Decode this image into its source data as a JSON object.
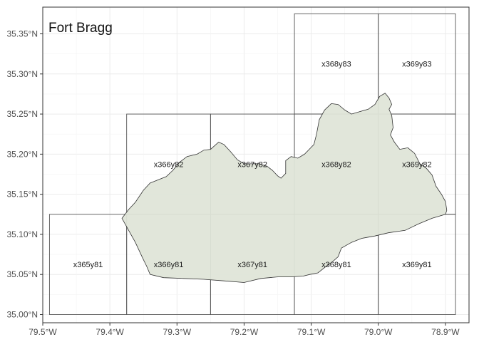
{
  "title": "Fort Bragg",
  "colors": {
    "panel_background": "#ffffff",
    "panel_border": "#333333",
    "gridline": "#ebebeb",
    "tile_border": "#555555",
    "boundary_fill": "#dfe5d8",
    "boundary_stroke": "#333333",
    "tick_text": "#4d4d4d"
  },
  "x_axis": {
    "range": [
      -79.5,
      -78.88
    ],
    "ticks": [
      {
        "value": -79.5,
        "label": "79.5°W"
      },
      {
        "value": -79.4,
        "label": "79.4°W"
      },
      {
        "value": -79.3,
        "label": "79.3°W"
      },
      {
        "value": -79.2,
        "label": "79.2°W"
      },
      {
        "value": -79.1,
        "label": "79.1°W"
      },
      {
        "value": -79.0,
        "label": "79.0°W"
      },
      {
        "value": -78.9,
        "label": "78.9°W"
      }
    ]
  },
  "y_axis": {
    "range": [
      35.0,
      35.375
    ],
    "ticks": [
      {
        "value": 35.0,
        "label": "35.00°N"
      },
      {
        "value": 35.05,
        "label": "35.05°N"
      },
      {
        "value": 35.1,
        "label": "35.10°N"
      },
      {
        "value": 35.15,
        "label": "35.15°N"
      },
      {
        "value": 35.2,
        "label": "35.20°N"
      },
      {
        "value": 35.25,
        "label": "35.25°N"
      },
      {
        "value": 35.3,
        "label": "35.30°N"
      },
      {
        "value": 35.35,
        "label": "35.35°N"
      }
    ]
  },
  "tiles": [
    {
      "label": "x365y81",
      "lon_min": -79.49,
      "lon_max": -79.375,
      "lat_min": 35.0,
      "lat_max": 35.125
    },
    {
      "label": "x366y81",
      "lon_min": -79.375,
      "lon_max": -79.25,
      "lat_min": 35.0,
      "lat_max": 35.125
    },
    {
      "label": "x367y81",
      "lon_min": -79.25,
      "lon_max": -79.125,
      "lat_min": 35.0,
      "lat_max": 35.125
    },
    {
      "label": "x368y81",
      "lon_min": -79.125,
      "lon_max": -79.0,
      "lat_min": 35.0,
      "lat_max": 35.125
    },
    {
      "label": "x369y81",
      "lon_min": -79.0,
      "lon_max": -78.885,
      "lat_min": 35.0,
      "lat_max": 35.125
    },
    {
      "label": "x366y82",
      "lon_min": -79.375,
      "lon_max": -79.25,
      "lat_min": 35.125,
      "lat_max": 35.25
    },
    {
      "label": "x367y82",
      "lon_min": -79.25,
      "lon_max": -79.125,
      "lat_min": 35.125,
      "lat_max": 35.25
    },
    {
      "label": "x368y82",
      "lon_min": -79.125,
      "lon_max": -79.0,
      "lat_min": 35.125,
      "lat_max": 35.25
    },
    {
      "label": "x369y82",
      "lon_min": -79.0,
      "lon_max": -78.885,
      "lat_min": 35.125,
      "lat_max": 35.25
    },
    {
      "label": "x368y83",
      "lon_min": -79.125,
      "lon_max": -79.0,
      "lat_min": 35.25,
      "lat_max": 35.375
    },
    {
      "label": "x369y83",
      "lon_min": -79.0,
      "lon_max": -78.885,
      "lat_min": 35.25,
      "lat_max": 35.375
    }
  ],
  "boundary": [
    [
      -79.382,
      35.12
    ],
    [
      -79.372,
      35.131
    ],
    [
      -79.362,
      35.14
    ],
    [
      -79.35,
      35.155
    ],
    [
      -79.34,
      35.164
    ],
    [
      -79.328,
      35.168
    ],
    [
      -79.316,
      35.172
    ],
    [
      -79.306,
      35.18
    ],
    [
      -79.296,
      35.19
    ],
    [
      -79.285,
      35.197
    ],
    [
      -79.27,
      35.2
    ],
    [
      -79.26,
      35.205
    ],
    [
      -79.25,
      35.206
    ],
    [
      -79.238,
      35.215
    ],
    [
      -79.23,
      35.212
    ],
    [
      -79.22,
      35.203
    ],
    [
      -79.21,
      35.193
    ],
    [
      -79.2,
      35.188
    ],
    [
      -79.19,
      35.188
    ],
    [
      -79.178,
      35.188
    ],
    [
      -79.166,
      35.185
    ],
    [
      -79.158,
      35.18
    ],
    [
      -79.15,
      35.173
    ],
    [
      -79.145,
      35.17
    ],
    [
      -79.138,
      35.176
    ],
    [
      -79.138,
      35.192
    ],
    [
      -79.13,
      35.197
    ],
    [
      -79.12,
      35.195
    ],
    [
      -79.11,
      35.2
    ],
    [
      -79.103,
      35.206
    ],
    [
      -79.096,
      35.212
    ],
    [
      -79.092,
      35.225
    ],
    [
      -79.088,
      35.243
    ],
    [
      -79.08,
      35.255
    ],
    [
      -79.07,
      35.263
    ],
    [
      -79.06,
      35.262
    ],
    [
      -79.05,
      35.255
    ],
    [
      -79.04,
      35.25
    ],
    [
      -79.028,
      35.253
    ],
    [
      -79.015,
      35.256
    ],
    [
      -79.005,
      35.262
    ],
    [
      -78.998,
      35.272
    ],
    [
      -78.99,
      35.276
    ],
    [
      -78.984,
      35.27
    ],
    [
      -78.98,
      35.262
    ],
    [
      -78.984,
      35.256
    ],
    [
      -78.98,
      35.248
    ],
    [
      -78.978,
      35.233
    ],
    [
      -78.982,
      35.224
    ],
    [
      -78.976,
      35.215
    ],
    [
      -78.968,
      35.206
    ],
    [
      -78.956,
      35.208
    ],
    [
      -78.946,
      35.201
    ],
    [
      -78.938,
      35.188
    ],
    [
      -78.928,
      35.182
    ],
    [
      -78.92,
      35.174
    ],
    [
      -78.914,
      35.16
    ],
    [
      -78.906,
      35.15
    ],
    [
      -78.9,
      35.141
    ],
    [
      -78.898,
      35.13
    ],
    [
      -78.9,
      35.125
    ],
    [
      -78.92,
      35.12
    ],
    [
      -78.94,
      35.113
    ],
    [
      -78.96,
      35.105
    ],
    [
      -78.985,
      35.102
    ],
    [
      -79.005,
      35.098
    ],
    [
      -79.025,
      35.095
    ],
    [
      -79.04,
      35.09
    ],
    [
      -79.055,
      35.083
    ],
    [
      -79.06,
      35.072
    ],
    [
      -79.068,
      35.066
    ],
    [
      -79.078,
      35.06
    ],
    [
      -79.09,
      35.052
    ],
    [
      -79.102,
      35.05
    ],
    [
      -79.112,
      35.048
    ],
    [
      -79.13,
      35.047
    ],
    [
      -79.15,
      35.047
    ],
    [
      -79.175,
      35.045
    ],
    [
      -79.2,
      35.04
    ],
    [
      -79.23,
      35.042
    ],
    [
      -79.26,
      35.044
    ],
    [
      -79.29,
      35.045
    ],
    [
      -79.32,
      35.046
    ],
    [
      -79.34,
      35.05
    ],
    [
      -79.345,
      35.06
    ],
    [
      -79.352,
      35.072
    ],
    [
      -79.362,
      35.09
    ],
    [
      -79.372,
      35.105
    ],
    [
      -79.382,
      35.12
    ]
  ]
}
